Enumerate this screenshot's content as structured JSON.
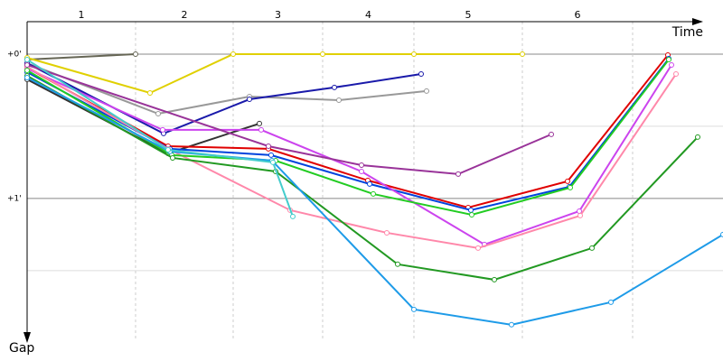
{
  "chart_data": {
    "type": "line",
    "x_label": "Time",
    "y_label": "Gap",
    "xlim": [
      0,
      770
    ],
    "ylim": [
      -0.225,
      1.97
    ],
    "y_inverted": true,
    "yticks": [
      {
        "value": 0,
        "label": "+0'"
      },
      {
        "value": 1,
        "label": "+1'"
      }
    ],
    "minor_yticks": [
      0.5,
      1.5
    ],
    "grid": true,
    "lap_labels": [
      "1",
      "2",
      "3",
      "4",
      "5",
      "6"
    ],
    "lap_boundaries": [
      120,
      228,
      327,
      428,
      548,
      670
    ],
    "series": [
      {
        "color": "#666655",
        "x": [
          0,
          120
        ],
        "values": [
          0.038,
          0
        ]
      },
      {
        "color": "#e0d000",
        "x": [
          0,
          136,
          228,
          327,
          428,
          548
        ],
        "values": [
          0.025,
          0.269,
          0,
          0,
          0,
          0
        ]
      },
      {
        "color": "#999999",
        "x": [
          0,
          145,
          246,
          345,
          442
        ],
        "values": [
          0.063,
          0.413,
          0.294,
          0.319,
          0.256
        ]
      },
      {
        "color": "#1a1aaa",
        "x": [
          0,
          151,
          246,
          340,
          436
        ],
        "values": [
          0.063,
          0.55,
          0.313,
          0.231,
          0.138
        ]
      },
      {
        "color": "#333333",
        "x": [
          0,
          156,
          257
        ],
        "values": [
          0.175,
          0.688,
          0.481
        ]
      },
      {
        "color": "#e00000",
        "x": [
          0,
          156,
          267,
          377,
          488,
          598,
          709
        ],
        "values": [
          0.094,
          0.638,
          0.656,
          0.875,
          1.063,
          0.881,
          0.006
        ]
      },
      {
        "color": "#0044dd",
        "x": [
          0,
          158,
          270,
          379,
          491,
          600,
          710
        ],
        "values": [
          0.125,
          0.656,
          0.7,
          0.9,
          1.081,
          0.919,
          0.031
        ]
      },
      {
        "color": "#cc44ee",
        "x": [
          0,
          150,
          259,
          370,
          506,
          611,
          713
        ],
        "values": [
          0.1,
          0.525,
          0.525,
          0.813,
          1.319,
          1.088,
          0.075
        ]
      },
      {
        "color": "#ff88aa",
        "x": [
          0,
          156,
          291,
          398,
          499,
          612,
          718
        ],
        "values": [
          0.088,
          0.656,
          1.081,
          1.238,
          1.344,
          1.119,
          0.138
        ]
      },
      {
        "color": "#22cc22",
        "x": [
          0,
          160,
          275,
          383,
          492,
          601,
          710
        ],
        "values": [
          0.113,
          0.7,
          0.738,
          0.969,
          1.113,
          0.925,
          0.038
        ]
      },
      {
        "color": "#229922",
        "x": [
          0,
          161,
          275,
          410,
          517,
          625,
          742
        ],
        "values": [
          0.15,
          0.719,
          0.813,
          1.456,
          1.563,
          1.344,
          0.575
        ]
      },
      {
        "color": "#1e9be8",
        "x": [
          0,
          158,
          271,
          428,
          536,
          646,
          770
        ],
        "values": [
          0.163,
          0.675,
          0.738,
          1.769,
          1.875,
          1.719,
          1.25
        ]
      },
      {
        "color": "#993399",
        "x": [
          0,
          267,
          370,
          477,
          580
        ],
        "values": [
          0.075,
          0.638,
          0.769,
          0.831,
          0.556
        ]
      },
      {
        "color": "#44cccc",
        "x": [
          0,
          156,
          272,
          294
        ],
        "values": [
          0.038,
          0.663,
          0.75,
          1.125
        ]
      }
    ]
  }
}
